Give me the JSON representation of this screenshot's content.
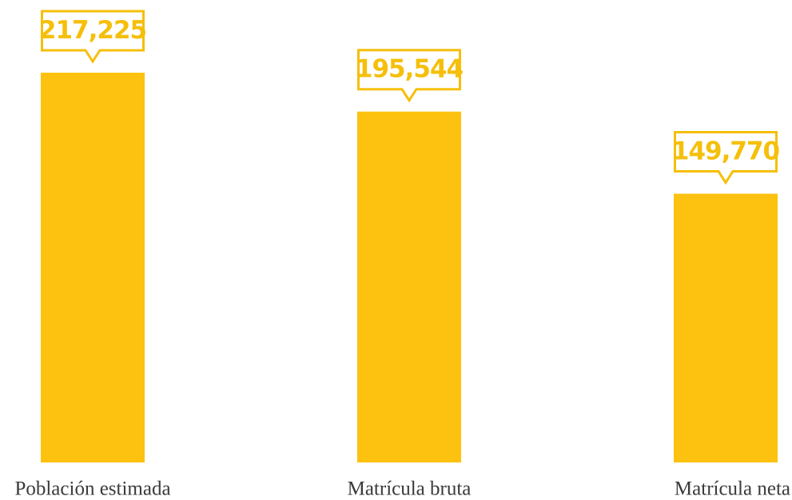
{
  "chart_data": {
    "type": "bar",
    "categories": [
      "Población estimada",
      "Matrícula bruta",
      "Matrícula neta"
    ],
    "values": [
      217225,
      195544,
      149770
    ],
    "value_labels": [
      "217,225",
      "195,544",
      "149,770"
    ],
    "color": "#FCC20F"
  }
}
